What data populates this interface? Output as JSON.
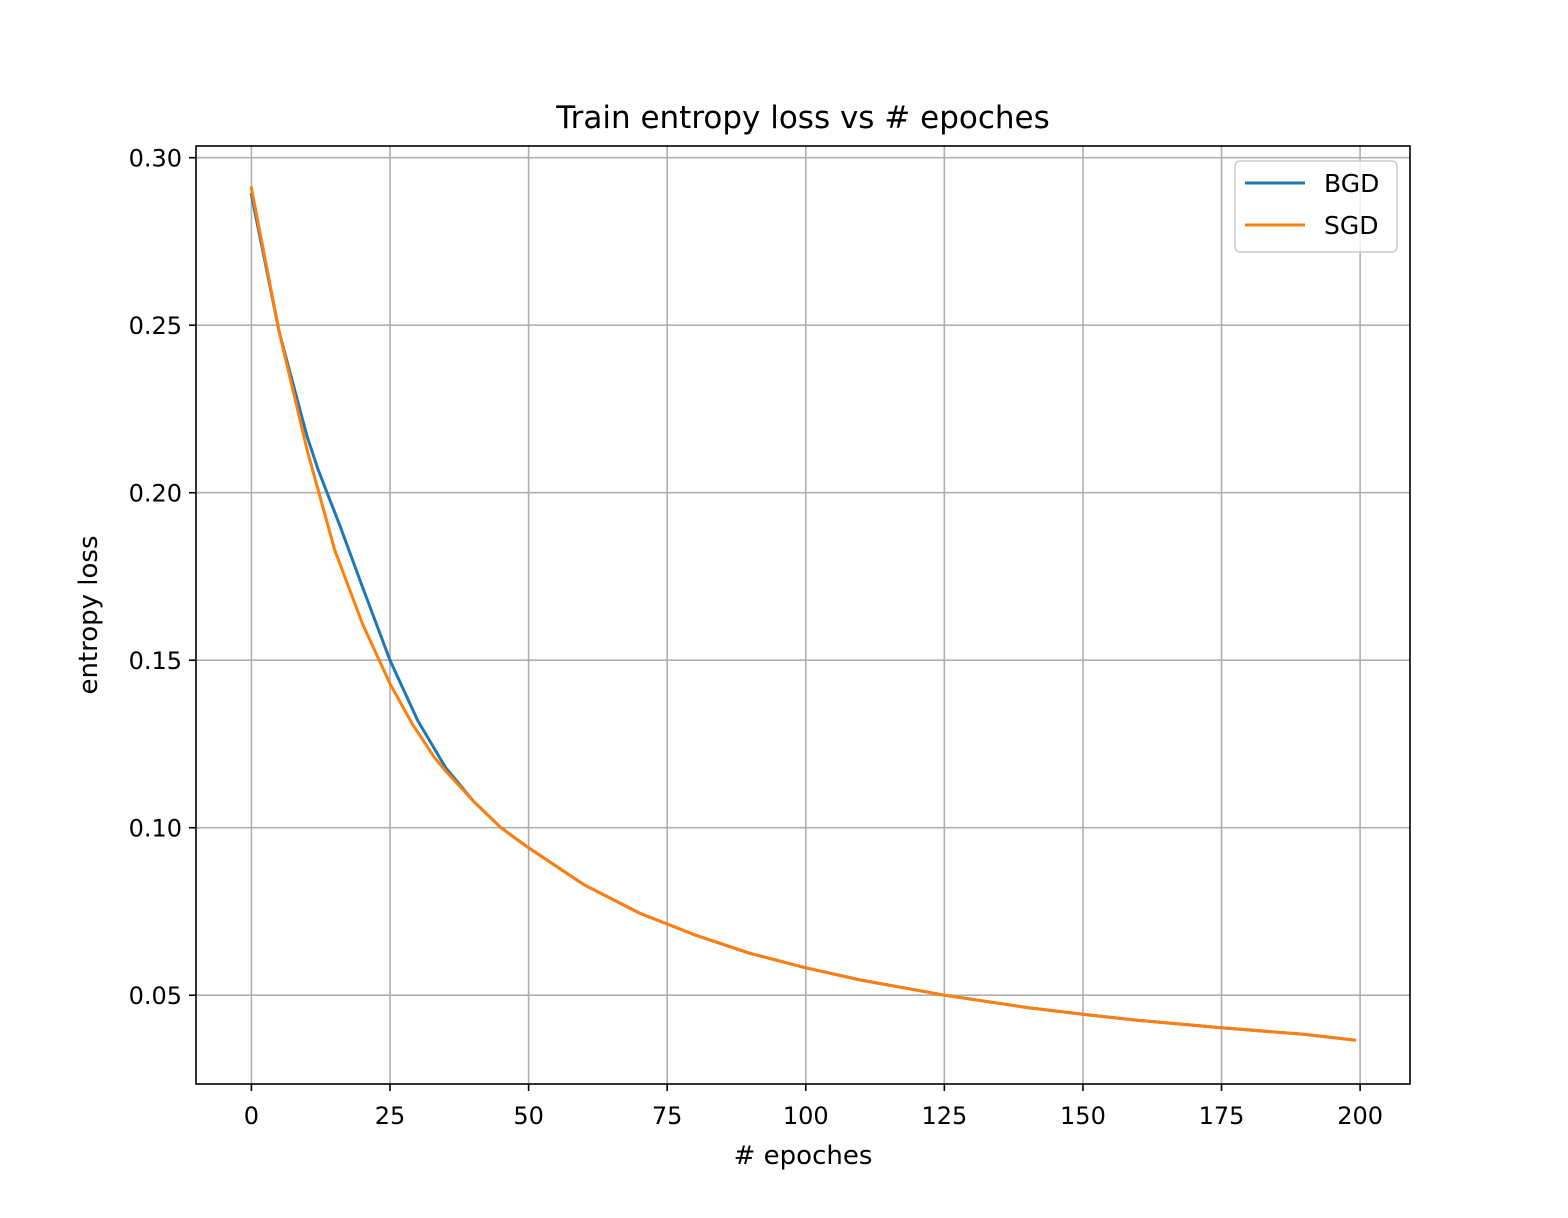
{
  "chart_data": {
    "type": "line",
    "title": "Train entropy loss vs # epoches",
    "xlabel": "# epoches",
    "ylabel": "entropy loss",
    "xlim": [
      -10,
      209
    ],
    "ylim": [
      0.0235,
      0.3035
    ],
    "xticks": [
      0,
      25,
      50,
      75,
      100,
      125,
      150,
      175,
      200
    ],
    "yticks": [
      0.05,
      0.1,
      0.15,
      0.2,
      0.25,
      0.3
    ],
    "xtick_labels": [
      "0",
      "25",
      "50",
      "75",
      "100",
      "125",
      "150",
      "175",
      "200"
    ],
    "ytick_labels": [
      "0.05",
      "0.10",
      "0.15",
      "0.20",
      "0.25",
      "0.30"
    ],
    "grid": true,
    "legend_position": "top-right",
    "series": [
      {
        "name": "BGD",
        "color": "#1f77b4",
        "x": [
          0,
          5,
          10,
          12,
          16,
          20,
          25,
          30,
          35,
          40,
          45,
          50,
          60,
          70,
          80,
          90,
          100,
          110,
          125,
          140,
          150,
          160,
          175,
          190,
          199
        ],
        "y": [
          0.289,
          0.248,
          0.217,
          0.207,
          0.19,
          0.172,
          0.15,
          0.132,
          0.118,
          0.108,
          0.1,
          0.094,
          0.083,
          0.0745,
          0.068,
          0.0625,
          0.0582,
          0.0545,
          0.05,
          0.0463,
          0.0443,
          0.0425,
          0.0403,
          0.0383,
          0.0366
        ]
      },
      {
        "name": "SGD",
        "color": "#ff7f0e",
        "x": [
          0,
          5,
          10,
          15,
          20,
          25,
          29,
          31,
          33,
          35,
          40,
          45,
          50,
          60,
          70,
          80,
          90,
          100,
          110,
          125,
          140,
          150,
          160,
          175,
          190,
          199
        ],
        "y": [
          0.291,
          0.248,
          0.213,
          0.183,
          0.161,
          0.143,
          0.131,
          0.126,
          0.121,
          0.117,
          0.108,
          0.1,
          0.094,
          0.083,
          0.0745,
          0.068,
          0.0625,
          0.0582,
          0.0545,
          0.05,
          0.0463,
          0.0443,
          0.0425,
          0.0403,
          0.0383,
          0.0366
        ]
      }
    ]
  }
}
